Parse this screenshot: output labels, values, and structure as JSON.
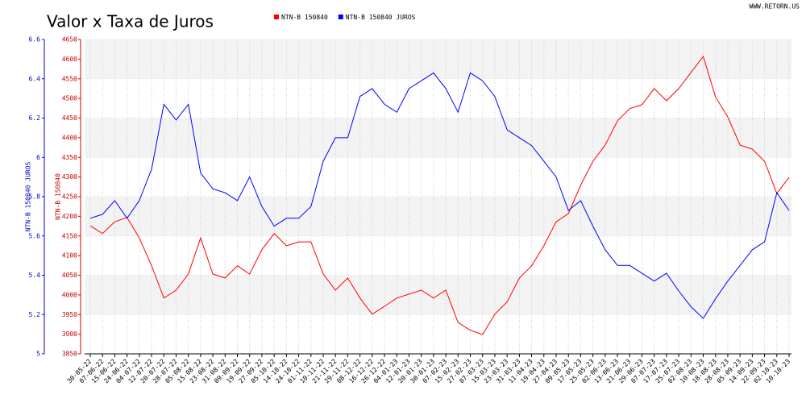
{
  "site": "WWW.RETORN.US",
  "chart_data": {
    "type": "line",
    "title": "Valor x Taxa de Juros",
    "categories": [
      "30-05-22",
      "07-06-22",
      "15-06-22",
      "24-06-22",
      "04-07-22",
      "12-07-22",
      "20-07-22",
      "28-07-22",
      "05-08-22",
      "15-08-22",
      "23-08-22",
      "31-08-22",
      "09-09-22",
      "19-09-22",
      "27-09-22",
      "05-10-22",
      "14-10-22",
      "24-10-22",
      "01-11-22",
      "10-11-22",
      "21-11-22",
      "29-11-22",
      "08-12-22",
      "16-12-22",
      "26-12-22",
      "04-01-23",
      "12-01-23",
      "20-01-23",
      "30-01-23",
      "07-02-23",
      "15-02-23",
      "27-02-23",
      "07-03-23",
      "15-03-23",
      "23-03-23",
      "31-03-23",
      "11-04-23",
      "19-04-23",
      "27-04-23",
      "09-05-23",
      "17-05-23",
      "25-05-23",
      "02-06-23",
      "13-06-23",
      "21-06-23",
      "29-06-23",
      "07-07-23",
      "17-07-23",
      "25-07-23",
      "02-08-23",
      "10-08-23",
      "18-08-23",
      "28-08-23",
      "05-09-23",
      "14-09-23",
      "22-09-23",
      "02-10-23",
      "10-10-23"
    ],
    "series": [
      {
        "name": "NTN-B 150840",
        "color": "#ff0000",
        "axis": "y",
        "values": [
          4176,
          4156,
          4186,
          4197,
          4145,
          4074,
          3992,
          4012,
          4053,
          4145,
          4053,
          4043,
          4074,
          4053,
          4115,
          4156,
          4125,
          4135,
          4135,
          4053,
          4012,
          4043,
          3992,
          3951,
          3971,
          3992,
          4002,
          4012,
          3992,
          4012,
          3930,
          3910,
          3899,
          3951,
          3982,
          4043,
          4074,
          4125,
          4186,
          4207,
          4279,
          4340,
          4381,
          4443,
          4474,
          4484,
          4525,
          4494,
          4525,
          4566,
          4607,
          4504,
          4453,
          4381,
          4371,
          4340,
          4258,
          4299
        ]
      },
      {
        "name": "NTN-B 150840 JUROS",
        "color": "#0000ff",
        "axis": "y2",
        "values": [
          5.69,
          5.71,
          5.78,
          5.69,
          5.78,
          5.94,
          6.27,
          6.19,
          6.27,
          5.92,
          5.84,
          5.82,
          5.78,
          5.9,
          5.75,
          5.65,
          5.69,
          5.69,
          5.75,
          5.98,
          6.1,
          6.1,
          6.31,
          6.35,
          6.27,
          6.23,
          6.35,
          6.39,
          6.43,
          6.35,
          6.23,
          6.43,
          6.39,
          6.31,
          6.14,
          6.1,
          6.06,
          5.98,
          5.9,
          5.73,
          5.78,
          5.65,
          5.53,
          5.45,
          5.45,
          5.41,
          5.37,
          5.41,
          5.32,
          5.24,
          5.18,
          5.28,
          5.37,
          5.45,
          5.53,
          5.57,
          5.82,
          5.73
        ]
      }
    ],
    "y_label": "NTN-B 150840",
    "y2_label": "NTN-B 150840 JUROS",
    "ylim": [
      3850,
      4650
    ],
    "yticks": [
      3850,
      3900,
      3950,
      4000,
      4050,
      4100,
      4150,
      4200,
      4250,
      4300,
      4350,
      4400,
      4450,
      4500,
      4550,
      4600,
      4650
    ],
    "y2lim": [
      5,
      6.6
    ],
    "y2ticks": [
      5,
      5.2,
      5.4,
      5.6,
      5.8,
      6,
      6.2,
      6.4,
      6.6
    ],
    "grid": true
  }
}
